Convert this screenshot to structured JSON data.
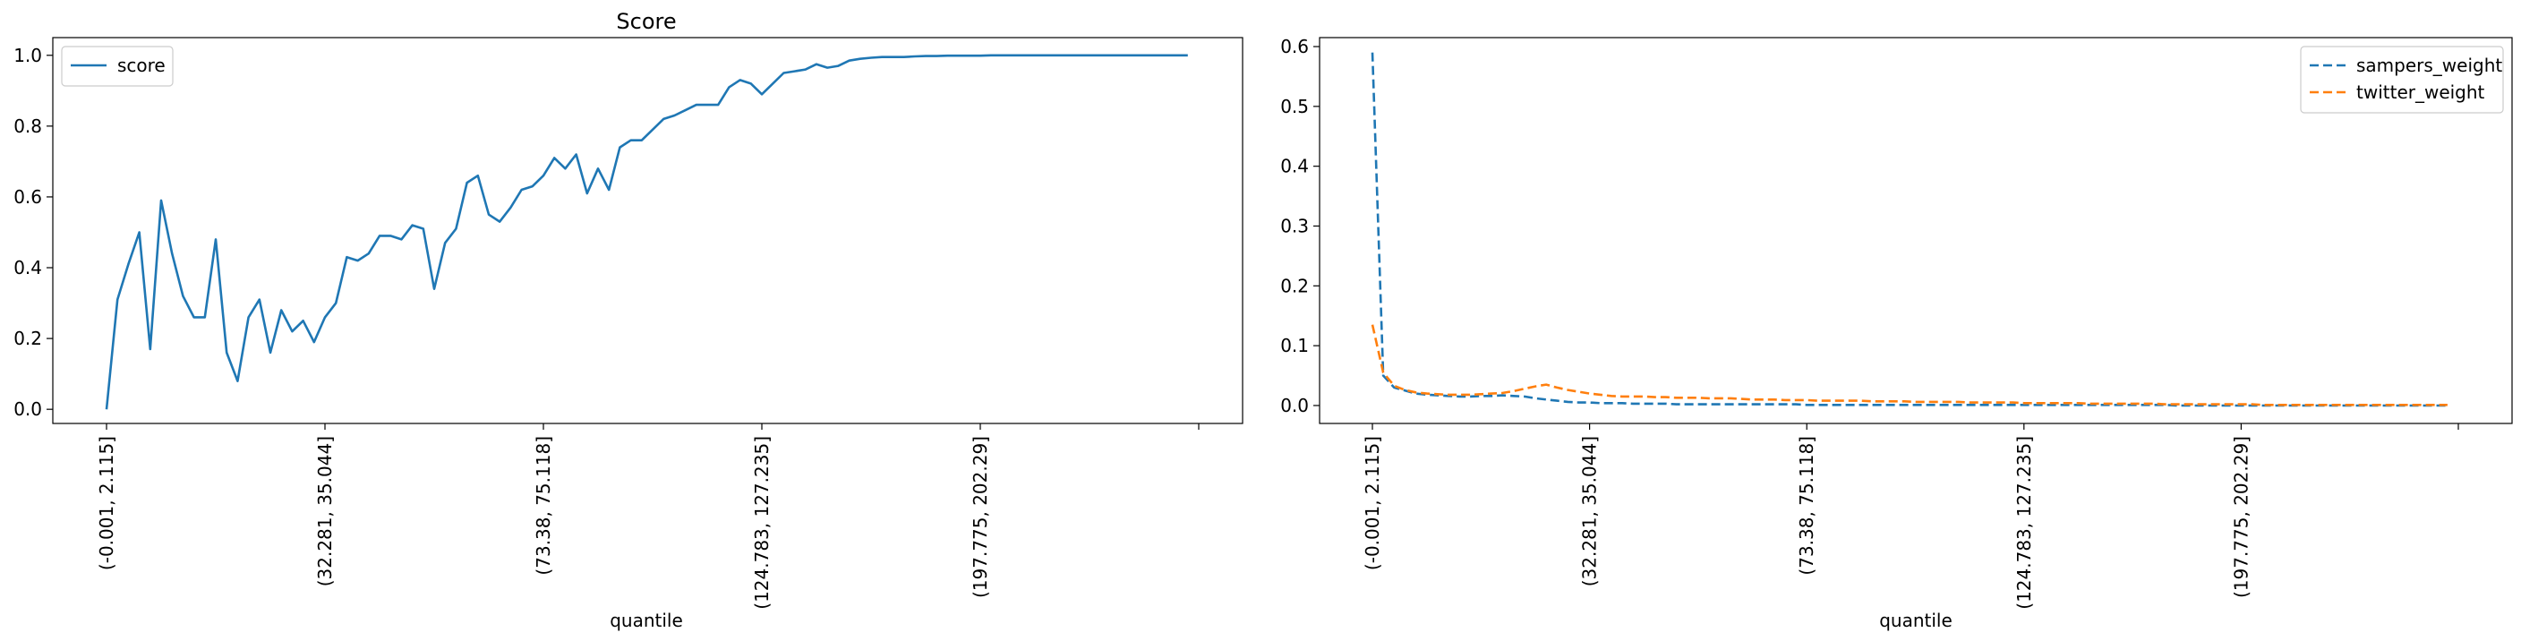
{
  "figure": {
    "left": {
      "title": "Score",
      "xlabel": "quantile"
    },
    "right": {
      "title": "",
      "xlabel": "quantile"
    }
  },
  "chart_data": [
    {
      "type": "line",
      "title": "Score",
      "xlabel": "quantile",
      "ylabel": "",
      "ylim": [
        -0.04,
        1.05
      ],
      "yticks": [
        0.0,
        0.2,
        0.4,
        0.6,
        0.8,
        1.0
      ],
      "xticklabels": [
        "(-0.001, 2.115]",
        "(32.281, 35.044]",
        "(73.38, 75.118]",
        "(124.783, 127.235]",
        "(197.775, 202.29]",
        ""
      ],
      "n_points": 100,
      "legend": {
        "position": "upper left",
        "entries": [
          "score"
        ]
      },
      "series": [
        {
          "name": "score",
          "color": "#1f77b4",
          "style": "solid",
          "values": [
            0.0,
            0.31,
            0.41,
            0.5,
            0.17,
            0.59,
            0.44,
            0.32,
            0.26,
            0.26,
            0.48,
            0.16,
            0.08,
            0.26,
            0.31,
            0.16,
            0.28,
            0.22,
            0.25,
            0.19,
            0.26,
            0.3,
            0.43,
            0.42,
            0.44,
            0.49,
            0.49,
            0.48,
            0.52,
            0.51,
            0.34,
            0.47,
            0.51,
            0.64,
            0.66,
            0.55,
            0.53,
            0.57,
            0.62,
            0.63,
            0.66,
            0.71,
            0.68,
            0.72,
            0.61,
            0.68,
            0.62,
            0.74,
            0.76,
            0.76,
            0.79,
            0.82,
            0.83,
            0.845,
            0.86,
            0.86,
            0.86,
            0.91,
            0.93,
            0.92,
            0.89,
            0.92,
            0.95,
            0.955,
            0.96,
            0.975,
            0.965,
            0.97,
            0.985,
            0.99,
            0.993,
            0.995,
            0.995,
            0.995,
            0.997,
            0.998,
            0.998,
            0.999,
            0.999,
            0.999,
            0.999,
            1.0,
            1.0,
            1.0,
            1.0,
            1.0,
            1.0,
            1.0,
            1.0,
            1.0,
            1.0,
            1.0,
            1.0,
            1.0,
            1.0,
            1.0,
            1.0,
            1.0,
            1.0,
            1.0
          ]
        }
      ]
    },
    {
      "type": "line",
      "title": "",
      "xlabel": "quantile",
      "ylabel": "",
      "ylim": [
        -0.03,
        0.615
      ],
      "yticks": [
        0.0,
        0.1,
        0.2,
        0.3,
        0.4,
        0.5,
        0.6
      ],
      "xticklabels": [
        "(-0.001, 2.115]",
        "(32.281, 35.044]",
        "(73.38, 75.118]",
        "(124.783, 127.235]",
        "(197.775, 202.29]",
        ""
      ],
      "n_points": 100,
      "legend": {
        "position": "upper right",
        "entries": [
          "sampers_weight",
          "twitter_weight"
        ]
      },
      "series": [
        {
          "name": "sampers_weight",
          "color": "#1f77b4",
          "style": "dashed",
          "values": [
            0.59,
            0.05,
            0.03,
            0.025,
            0.02,
            0.018,
            0.017,
            0.016,
            0.015,
            0.015,
            0.016,
            0.016,
            0.017,
            0.016,
            0.015,
            0.012,
            0.01,
            0.008,
            0.006,
            0.005,
            0.005,
            0.004,
            0.004,
            0.004,
            0.003,
            0.003,
            0.003,
            0.003,
            0.002,
            0.002,
            0.002,
            0.002,
            0.002,
            0.002,
            0.002,
            0.002,
            0.002,
            0.002,
            0.002,
            0.002,
            0.001,
            0.001,
            0.001,
            0.001,
            0.001,
            0.001,
            0.001,
            0.001,
            0.001,
            0.001,
            0.001,
            0.001,
            0.001,
            0.001,
            0.001,
            0.001,
            0.001,
            0.001,
            0.001,
            0.001,
            0.001,
            0.001,
            0.001,
            0.001,
            0.001,
            0.001,
            0.001,
            0.001,
            0.001,
            0.001,
            0.001,
            0.001,
            0.001,
            0.001,
            0.0,
            0.0,
            0.0,
            0.0,
            0.0,
            0.0,
            0.0,
            0.0,
            0.0,
            0.0,
            0.0,
            0.0,
            0.0,
            0.0,
            0.0,
            0.0,
            0.0,
            0.0,
            0.0,
            0.0,
            0.0,
            0.0,
            0.0,
            0.0,
            0.0,
            0.0
          ]
        },
        {
          "name": "twitter_weight",
          "color": "#ff7f0e",
          "style": "dashed",
          "values": [
            0.135,
            0.055,
            0.033,
            0.026,
            0.022,
            0.02,
            0.019,
            0.018,
            0.018,
            0.018,
            0.019,
            0.02,
            0.021,
            0.024,
            0.028,
            0.032,
            0.035,
            0.03,
            0.026,
            0.023,
            0.02,
            0.018,
            0.016,
            0.015,
            0.015,
            0.015,
            0.014,
            0.014,
            0.013,
            0.013,
            0.013,
            0.012,
            0.012,
            0.012,
            0.011,
            0.01,
            0.01,
            0.01,
            0.009,
            0.009,
            0.009,
            0.008,
            0.008,
            0.008,
            0.008,
            0.008,
            0.007,
            0.007,
            0.007,
            0.007,
            0.006,
            0.006,
            0.006,
            0.006,
            0.006,
            0.005,
            0.005,
            0.005,
            0.005,
            0.005,
            0.004,
            0.004,
            0.004,
            0.004,
            0.004,
            0.004,
            0.003,
            0.003,
            0.003,
            0.003,
            0.003,
            0.003,
            0.003,
            0.002,
            0.002,
            0.002,
            0.002,
            0.002,
            0.002,
            0.002,
            0.002,
            0.002,
            0.001,
            0.001,
            0.001,
            0.001,
            0.001,
            0.001,
            0.001,
            0.001,
            0.001,
            0.001,
            0.001,
            0.001,
            0.001,
            0.001,
            0.001,
            0.001,
            0.001,
            0.001
          ]
        }
      ]
    }
  ]
}
